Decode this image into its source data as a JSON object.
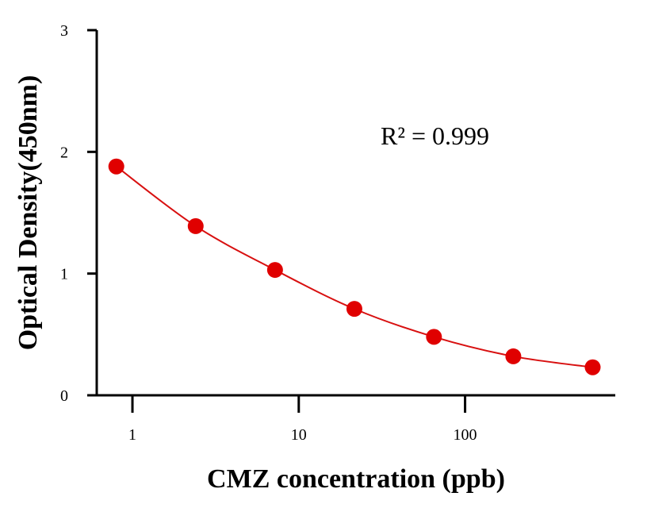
{
  "chart_data": {
    "type": "scatter",
    "xlabel": "CMZ concentration (ppb)",
    "ylabel": "Optical Density(450nm)",
    "x_scale": "log",
    "xlim": [
      0.61,
      800
    ],
    "ylim": [
      0,
      3
    ],
    "x_ticks": [
      1,
      10,
      100
    ],
    "x_tick_labels": [
      "1",
      "10",
      "100"
    ],
    "y_ticks": [
      0,
      1,
      2,
      3
    ],
    "y_tick_labels": [
      "0",
      "1",
      "2",
      "3"
    ],
    "grid": false,
    "color": "#e00000",
    "fit_color": "#d81010",
    "series": [
      {
        "x": [
          0.8,
          2.4,
          7.2,
          21.6,
          65,
          195,
          585
        ],
        "y": [
          1.88,
          1.39,
          1.03,
          0.71,
          0.48,
          0.32,
          0.23
        ]
      }
    ],
    "fit_curve": true,
    "annotation": "R² = 0.999"
  }
}
